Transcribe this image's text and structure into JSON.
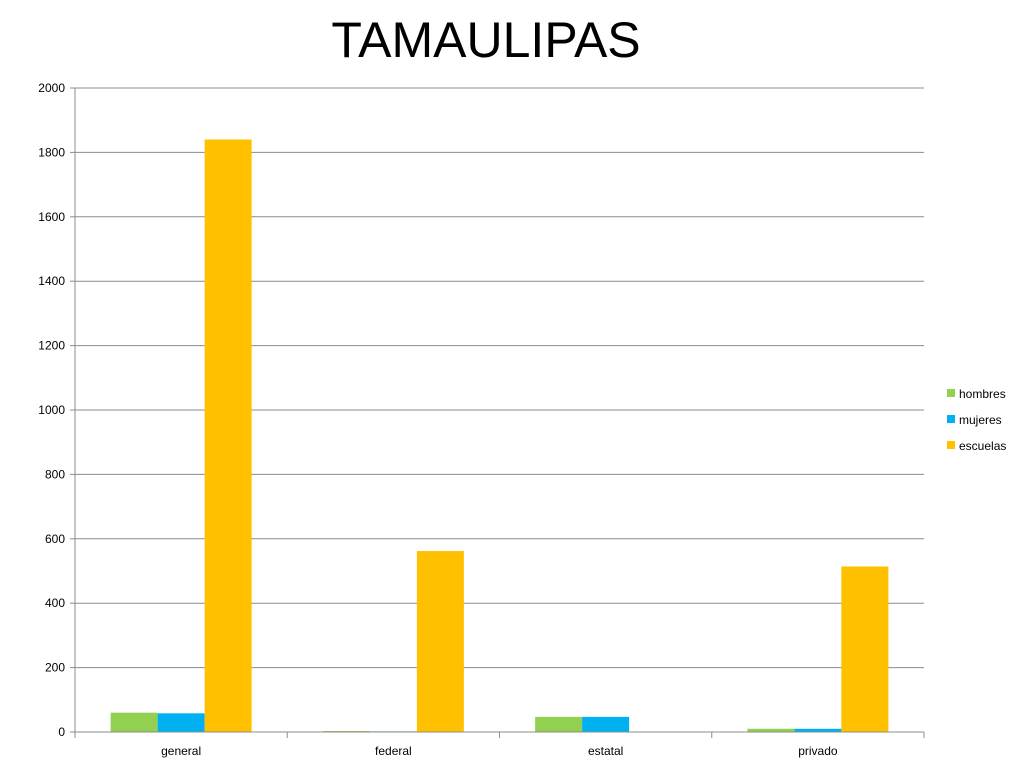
{
  "chart_data": {
    "type": "bar",
    "title": "TAMAULIPAS",
    "xlabel": "",
    "ylabel": "",
    "categories": [
      "general",
      "federal",
      "estatal",
      "privado"
    ],
    "series": [
      {
        "name": "hombres",
        "color": "#92D050",
        "values": [
          60,
          3,
          47,
          10
        ]
      },
      {
        "name": "mujeres",
        "color": "#00B0F0",
        "values": [
          58,
          2,
          47,
          10
        ]
      },
      {
        "name": "escuelas",
        "color": "#FFC000",
        "values": [
          1840,
          562,
          0,
          514
        ]
      }
    ],
    "ylim": [
      0,
      2000
    ],
    "yticks": [
      "0",
      "200",
      "400",
      "600",
      "800",
      "1000",
      "1200",
      "1400",
      "1600",
      "1800",
      "2000"
    ],
    "grid": true,
    "legend_position": "right"
  }
}
